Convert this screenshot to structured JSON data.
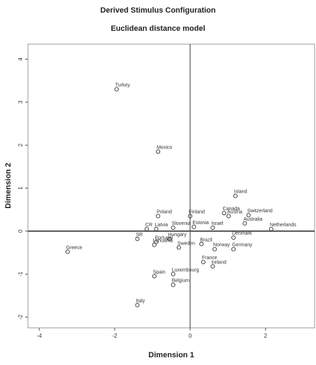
{
  "chart_data": {
    "type": "scatter",
    "title": "Derived Stimulus Configuration",
    "subtitle": "Euclidean distance model",
    "xlabel": "Dimension 1",
    "ylabel": "Dimension 2",
    "xlim": [
      -4.3,
      3.3
    ],
    "ylim": [
      -2.25,
      4.35
    ],
    "x_ticks": [
      -4,
      -2,
      0,
      2
    ],
    "y_ticks": [
      -2,
      -1,
      0,
      1,
      2,
      3,
      4
    ],
    "x_tick_labels": [
      "-4",
      "-2",
      "0",
      "2"
    ],
    "y_tick_labels": [
      "-2",
      "-1",
      "0",
      "1",
      "2",
      "3",
      "4"
    ],
    "grid": false,
    "reference_lines": {
      "x": 0,
      "y": 0
    },
    "marker": "open-circle",
    "colors": {
      "axis": "#444444",
      "marker": "#333333",
      "reference": "#555555"
    },
    "points": [
      {
        "label": "Turkey",
        "x": -1.95,
        "y": 3.3
      },
      {
        "label": "Mexico",
        "x": -0.85,
        "y": 1.85
      },
      {
        "label": "Island",
        "x": 1.2,
        "y": 0.82
      },
      {
        "label": "Poland",
        "x": -0.85,
        "y": 0.35
      },
      {
        "label": "Finland",
        "x": 0.0,
        "y": 0.35
      },
      {
        "label": "Canada",
        "x": 0.9,
        "y": 0.42
      },
      {
        "label": "Austria",
        "x": 1.02,
        "y": 0.35
      },
      {
        "label": "Switzerland",
        "x": 1.55,
        "y": 0.37
      },
      {
        "label": "Slovenia",
        "x": -0.45,
        "y": 0.08
      },
      {
        "label": "Estonia",
        "x": 0.1,
        "y": 0.1
      },
      {
        "label": "Australia",
        "x": 1.45,
        "y": 0.18
      },
      {
        "label": "Netherlands",
        "x": 2.15,
        "y": 0.05
      },
      {
        "label": "Israel",
        "x": 0.6,
        "y": 0.08
      },
      {
        "label": "CR",
        "x": -1.15,
        "y": 0.05
      },
      {
        "label": "Latvia",
        "x": -0.9,
        "y": 0.05
      },
      {
        "label": "SR",
        "x": -1.4,
        "y": -0.18
      },
      {
        "label": "Hungary",
        "x": -0.55,
        "y": -0.18
      },
      {
        "label": "Portugal",
        "x": -0.9,
        "y": -0.25
      },
      {
        "label": "Lithuania",
        "x": -0.95,
        "y": -0.32
      },
      {
        "label": "Sweden",
        "x": -0.3,
        "y": -0.38
      },
      {
        "label": "Brazil",
        "x": 0.3,
        "y": -0.3
      },
      {
        "label": "Denmark",
        "x": 1.15,
        "y": -0.15
      },
      {
        "label": "Norway",
        "x": 0.65,
        "y": -0.42
      },
      {
        "label": "Germany",
        "x": 1.15,
        "y": -0.42
      },
      {
        "label": "Greece",
        "x": -3.25,
        "y": -0.48
      },
      {
        "label": "France",
        "x": 0.35,
        "y": -0.72
      },
      {
        "label": "Ireland",
        "x": 0.6,
        "y": -0.82
      },
      {
        "label": "Spain",
        "x": -0.95,
        "y": -1.05
      },
      {
        "label": "Luxembourg",
        "x": -0.45,
        "y": -1.0
      },
      {
        "label": "Belgium",
        "x": -0.45,
        "y": -1.25
      },
      {
        "label": "Italy",
        "x": -1.4,
        "y": -1.72
      }
    ]
  }
}
